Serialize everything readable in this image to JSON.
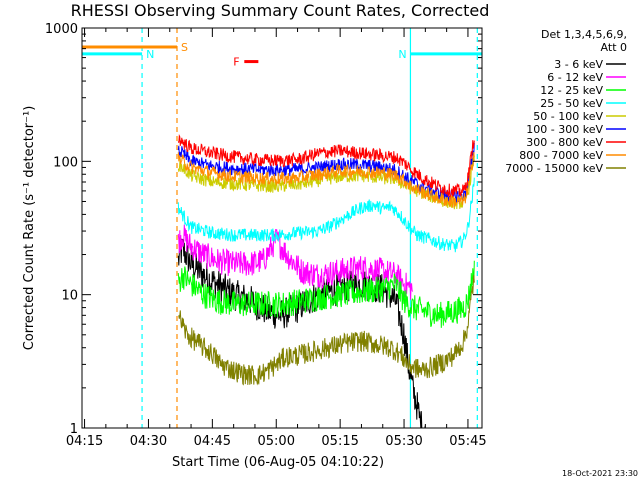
{
  "chart_data": {
    "type": "line",
    "title": "RHESSI Observing Summary Count Rates, Corrected",
    "xlabel": "Start Time (06-Aug-05 04:10:22)",
    "ylabel": "Corrected Count Rate (s⁻¹ detector⁻¹)",
    "y_scale": "log",
    "ylim": [
      1,
      1000
    ],
    "xlim_minutes": [
      4.4,
      98.3
    ],
    "x_ticks": [
      "04:15",
      "04:30",
      "04:45",
      "05:00",
      "05:15",
      "05:30",
      "05:45"
    ],
    "x_tick_minutes": [
      5,
      20,
      35,
      50,
      65,
      80,
      95
    ],
    "y_ticks": [
      "1",
      "10",
      "100",
      "1000"
    ],
    "y_tick_values": [
      1,
      10,
      100,
      1000
    ],
    "legend_header": [
      "Det 1,3,4,5,6,9,",
      "Att 0"
    ],
    "legend_position": "right",
    "timestamp": "18-Oct-2021 23:30",
    "series": [
      {
        "name": "3 - 6 keV",
        "color": "#000000",
        "x": [
          27,
          28,
          30,
          33,
          36,
          40,
          44,
          48,
          51,
          55,
          60,
          65,
          70,
          75,
          78,
          80,
          81,
          82,
          83,
          84,
          85
        ],
        "y": [
          18,
          22,
          17,
          14,
          12,
          10,
          9,
          7.5,
          7,
          8,
          10,
          11,
          12,
          11,
          9,
          5,
          3,
          2,
          1.5,
          1.05,
          1
        ]
      },
      {
        "name": "6 - 12 keV",
        "color": "#ff00ff",
        "x": [
          27,
          28,
          30,
          33,
          36,
          40,
          44,
          47,
          50,
          53,
          56,
          60,
          65,
          70,
          75,
          78,
          80,
          82
        ],
        "y": [
          25,
          28,
          23,
          20,
          18,
          17,
          17,
          18,
          26,
          19,
          15,
          14,
          15,
          16,
          15,
          14,
          12,
          11
        ]
      },
      {
        "name": "12 - 25 keV",
        "color": "#00ff00",
        "x": [
          27,
          28,
          30,
          33,
          36,
          40,
          44,
          48,
          52,
          56,
          60,
          65,
          70,
          75,
          78,
          80,
          82,
          85,
          88,
          90,
          92,
          94,
          95,
          96.5
        ],
        "y": [
          12,
          14,
          12,
          10,
          9,
          8.5,
          8.5,
          8.5,
          8.5,
          9,
          9.5,
          10,
          10.5,
          11,
          12,
          9,
          8,
          7.5,
          7,
          7.2,
          7.5,
          8,
          9,
          16
        ]
      },
      {
        "name": "25 - 50 keV",
        "color": "#00ffff",
        "x": [
          27,
          28,
          30,
          35,
          40,
          45,
          50,
          55,
          60,
          63,
          66,
          70,
          73,
          75,
          77,
          79,
          81,
          83,
          86,
          89,
          92,
          94,
          95,
          96.5
        ],
        "y": [
          45,
          40,
          32,
          29,
          28,
          28,
          28,
          29,
          30,
          33,
          38,
          45,
          47,
          44,
          46,
          40,
          33,
          28,
          26,
          24,
          23,
          26,
          32,
          70
        ]
      },
      {
        "name": "50 - 100 keV",
        "color": "#cccc00",
        "x": [
          27,
          28,
          30,
          35,
          40,
          45,
          50,
          55,
          60,
          65,
          70,
          75,
          78,
          80,
          82,
          85,
          88,
          91,
          94,
          95,
          96.5
        ],
        "y": [
          95,
          90,
          78,
          70,
          68,
          66,
          65,
          67,
          72,
          77,
          78,
          75,
          74,
          67,
          62,
          57,
          52,
          49,
          49,
          58,
          110
        ]
      },
      {
        "name": "100 - 300 keV",
        "color": "#0000ff",
        "x": [
          27,
          28,
          30,
          35,
          40,
          45,
          50,
          55,
          60,
          65,
          70,
          75,
          78,
          80,
          82,
          85,
          88,
          91,
          94,
          95,
          96.5
        ],
        "y": [
          120,
          115,
          100,
          92,
          88,
          87,
          86,
          87,
          90,
          95,
          94,
          90,
          86,
          78,
          70,
          63,
          58,
          55,
          55,
          65,
          130
        ]
      },
      {
        "name": "300 - 800 keV",
        "color": "#ff0000",
        "x": [
          27,
          28,
          30,
          35,
          40,
          45,
          50,
          55,
          60,
          65,
          70,
          75,
          78,
          80,
          82,
          85,
          88,
          91,
          94,
          95,
          96.5
        ],
        "y": [
          150,
          140,
          125,
          115,
          108,
          103,
          101,
          103,
          115,
          120,
          115,
          110,
          107,
          98,
          85,
          73,
          65,
          60,
          60,
          75,
          155
        ]
      },
      {
        "name": "800 - 7000 keV",
        "color": "#ff8c00",
        "x": [
          27,
          28,
          30,
          35,
          40,
          45,
          50,
          55,
          60,
          65,
          70,
          75,
          78,
          80,
          82,
          85,
          88,
          91,
          94,
          95,
          96.5
        ],
        "y": [
          105,
          100,
          90,
          82,
          77,
          75,
          74,
          75,
          80,
          85,
          84,
          82,
          79,
          72,
          64,
          58,
          53,
          50,
          50,
          60,
          120
        ]
      },
      {
        "name": "7000 - 15000 keV",
        "color": "#808000",
        "x": [
          27,
          28,
          29,
          31,
          33,
          35,
          37,
          40,
          43,
          46,
          48,
          50,
          52,
          55,
          58,
          62,
          66,
          70,
          74,
          77,
          79,
          81,
          84,
          87,
          90,
          92,
          94,
          95,
          96.5
        ],
        "y": [
          7,
          6,
          5,
          4.5,
          4,
          3.6,
          3,
          2.7,
          2.5,
          2.5,
          2.7,
          3,
          3.4,
          3.5,
          3.7,
          4,
          4.3,
          4.5,
          4.2,
          4,
          3.6,
          3,
          2.7,
          2.9,
          3.2,
          3.6,
          4.5,
          6,
          14
        ]
      }
    ],
    "flags": [
      {
        "label": "S",
        "color": "#ff8c00",
        "start": 4.4,
        "end": 26.7,
        "level": 720
      },
      {
        "label": "N",
        "color": "#00ffff",
        "start": 4.4,
        "end": 18.5,
        "level": 640
      },
      {
        "label": "N",
        "color": "#00ffff",
        "start": 81.5,
        "end": 98.3,
        "level": 640
      },
      {
        "label": "F",
        "color": "#ff0000",
        "start": 42.5,
        "end": 45.8,
        "level": 560
      }
    ],
    "vertical_markers": [
      {
        "minute": 18.5,
        "color": "#00ffff",
        "style": "dashed"
      },
      {
        "minute": 26.7,
        "color": "#ff8c00",
        "style": "dashed"
      },
      {
        "minute": 81.5,
        "color": "#00ffff",
        "style": "solid"
      },
      {
        "minute": 97.2,
        "color": "#00ffff",
        "style": "dashed"
      }
    ]
  }
}
